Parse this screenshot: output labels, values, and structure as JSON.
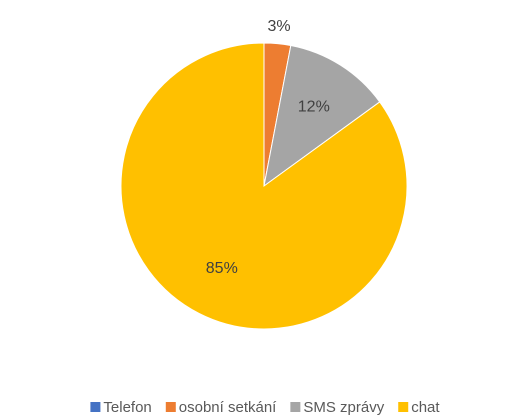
{
  "chart_data": {
    "type": "pie",
    "categories": [
      "Telefon",
      "osobní setkání",
      "SMS zprávy",
      "chat"
    ],
    "values": [
      0,
      3,
      12,
      85
    ],
    "value_labels": [
      null,
      "3%",
      "12%",
      "85%"
    ],
    "colors": [
      "#4472c4",
      "#ed7d31",
      "#a5a5a5",
      "#ffc000"
    ],
    "legend": "bottom"
  }
}
